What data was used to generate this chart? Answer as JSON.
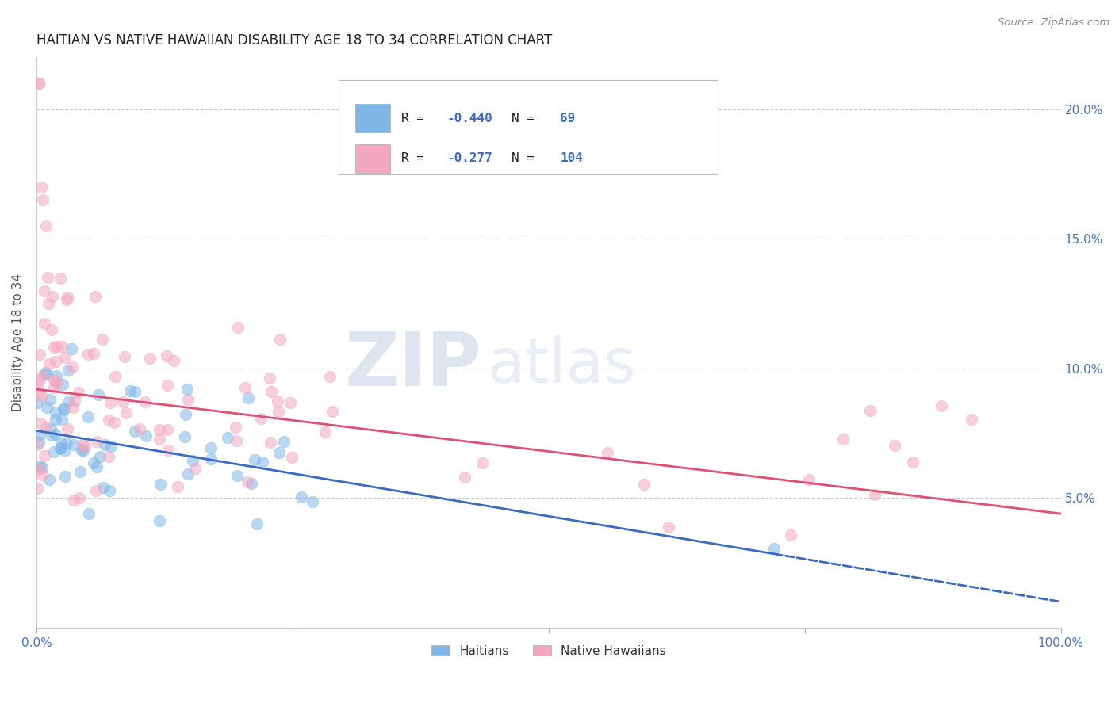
{
  "title": "HAITIAN VS NATIVE HAWAIIAN DISABILITY AGE 18 TO 34 CORRELATION CHART",
  "source": "Source: ZipAtlas.com",
  "ylabel": "Disability Age 18 to 34",
  "x_min": 0.0,
  "x_max": 1.0,
  "y_min": 0.0,
  "y_max": 0.22,
  "haitian_color": "#7EB6E8",
  "hawaiian_color": "#F4A7C0",
  "haitian_R": -0.44,
  "haitian_N": 69,
  "hawaiian_R": -0.277,
  "hawaiian_N": 104,
  "haitian_line_color": "#3A6BC4",
  "hawaiian_line_color": "#E05070",
  "legend_label_haitian": "Haitians",
  "legend_label_hawaiian": "Native Hawaiians",
  "title_fontsize": 12,
  "axis_label_color": "#4472C4",
  "grid_color": "#CCCCCC",
  "haitian_intercept": 0.076,
  "haitian_slope": -0.066,
  "hawaiian_intercept": 0.092,
  "hawaiian_slope": -0.048
}
